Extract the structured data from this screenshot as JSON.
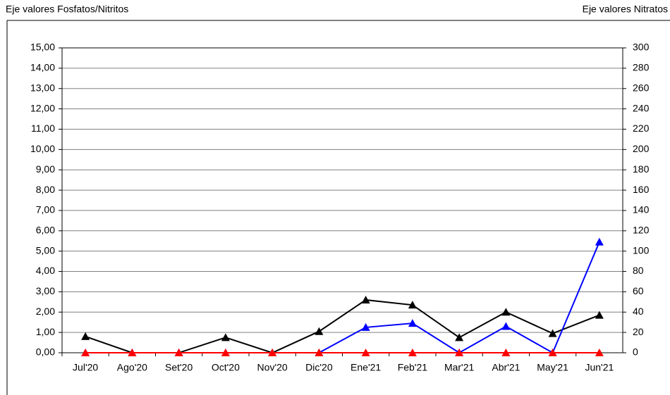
{
  "chart_data": {
    "type": "line",
    "y_axis_label": "Eje valores Fosfatos/Nitritos",
    "y2_axis_label": "Eje valores Nitratos",
    "categories": [
      "Jul'20",
      "Ago'20",
      "Set'20",
      "Oct'20",
      "Nov'20",
      "Dic'20",
      "Ene'21",
      "Feb'21",
      "Mar'21",
      "Abr'21",
      "May'21",
      "Jun'21"
    ],
    "series": [
      {
        "color": "#000000",
        "axis": "y2",
        "values": [
          16,
          0,
          0,
          15,
          0,
          21,
          52,
          47,
          15,
          40,
          19,
          37
        ]
      },
      {
        "color": "#0000ff",
        "values": [
          0,
          0,
          0,
          0,
          0,
          0,
          1.25,
          1.45,
          0,
          1.3,
          0,
          5.45
        ]
      },
      {
        "color": "#ff0000",
        "values": [
          0,
          0,
          0,
          0,
          0,
          0,
          0,
          0,
          0,
          0,
          0,
          0
        ]
      }
    ],
    "ylim": [
      0,
      15
    ],
    "yticks": [
      {
        "value": 0,
        "label": "0,00"
      },
      {
        "value": 1,
        "label": "1,00"
      },
      {
        "value": 2,
        "label": "2,00"
      },
      {
        "value": 3,
        "label": "3,00"
      },
      {
        "value": 4,
        "label": "4,00"
      },
      {
        "value": 5,
        "label": "5,00"
      },
      {
        "value": 6,
        "label": "6,00"
      },
      {
        "value": 7,
        "label": "7,00"
      },
      {
        "value": 8,
        "label": "8,00"
      },
      {
        "value": 9,
        "label": "9,00"
      },
      {
        "value": 10,
        "label": "10,00"
      },
      {
        "value": 11,
        "label": "11,00"
      },
      {
        "value": 12,
        "label": "12,00"
      },
      {
        "value": 13,
        "label": "13,00"
      },
      {
        "value": 14,
        "label": "14,00"
      },
      {
        "value": 15,
        "label": "15,00"
      }
    ],
    "y2lim": [
      0,
      300
    ],
    "y2ticks": [
      0,
      20,
      40,
      60,
      80,
      100,
      120,
      140,
      160,
      180,
      200,
      220,
      240,
      260,
      280,
      300
    ],
    "grid": true
  }
}
